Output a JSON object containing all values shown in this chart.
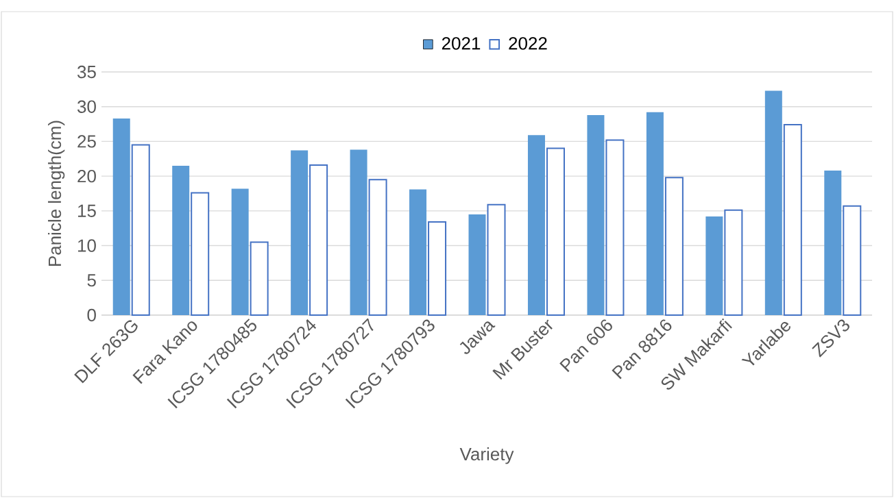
{
  "chart_data": {
    "type": "bar",
    "xlabel": "Variety",
    "ylabel": "Panicle length(cm)",
    "categories": [
      "DLF 263G",
      "Fara Kano",
      "ICSG 1780485",
      "ICSG 1780724",
      "ICSG 1780727",
      "ICSG 1780793",
      "Jawa",
      "Mr Buster",
      "Pan 606",
      "Pan 8816",
      "SW Makarfi",
      "Yarlabe",
      "ZSV3"
    ],
    "series": [
      {
        "name": "2021",
        "color": "#5b9bd5",
        "values": [
          28.3,
          21.5,
          18.2,
          23.7,
          23.8,
          18.1,
          14.5,
          25.9,
          28.8,
          29.2,
          14.2,
          32.3,
          20.8
        ]
      },
      {
        "name": "2022",
        "color": "#4472c4",
        "values": [
          24.5,
          17.6,
          10.5,
          21.6,
          19.5,
          13.4,
          15.9,
          24.0,
          25.2,
          19.8,
          15.1,
          27.4,
          15.7
        ]
      }
    ],
    "ylim": [
      0,
      35
    ],
    "yticks": [
      0,
      5,
      10,
      15,
      20,
      25,
      30,
      35
    ],
    "grid": "y",
    "legend": "top"
  }
}
